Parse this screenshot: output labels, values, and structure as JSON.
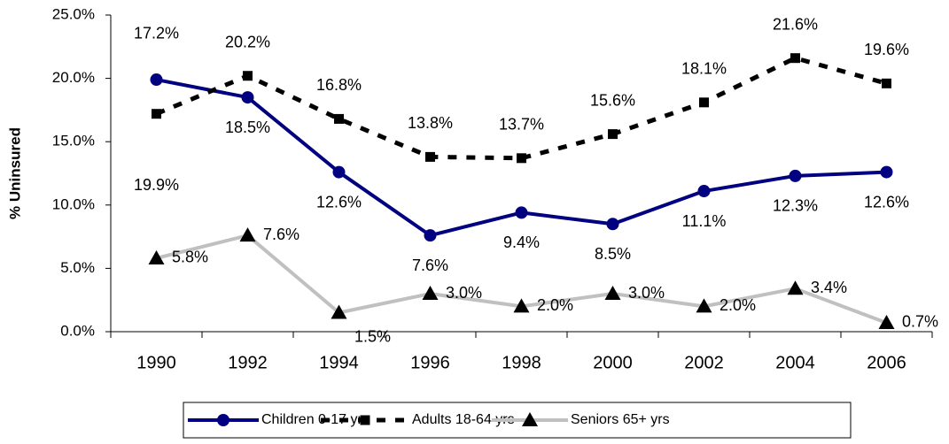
{
  "chart_data": {
    "type": "line",
    "y_label": "% Uninsured",
    "categories": [
      "1990",
      "1992",
      "1994",
      "1996",
      "1998",
      "2000",
      "2002",
      "2004",
      "2006"
    ],
    "series": [
      {
        "name": "Children 0-17 yrs",
        "color": "#000080",
        "marker": "circle",
        "marker_color": "#000080",
        "dashed": false,
        "values": [
          19.9,
          18.5,
          12.6,
          7.6,
          9.4,
          8.5,
          11.1,
          12.3,
          12.6
        ],
        "value_labels": [
          "19.9%",
          "18.5%",
          "12.6%",
          "7.6%",
          "9.4%",
          "8.5%",
          "11.1%",
          "12.3%",
          "12.6%"
        ]
      },
      {
        "name": "Adults 18-64 yrs",
        "color": "#000000",
        "marker": "square",
        "marker_color": "#000000",
        "dashed": true,
        "values": [
          17.2,
          20.2,
          16.8,
          13.8,
          13.7,
          15.6,
          18.1,
          21.6,
          19.6
        ],
        "value_labels": [
          "17.2%",
          "20.2%",
          "16.8%",
          "13.8%",
          "13.7%",
          "15.6%",
          "18.1%",
          "21.6%",
          "19.6%"
        ]
      },
      {
        "name": "Seniors 65+ yrs",
        "color": "#c0c0c0",
        "marker": "triangle",
        "marker_color": "#000000",
        "dashed": false,
        "values": [
          5.8,
          7.6,
          1.5,
          3.0,
          2.0,
          3.0,
          2.0,
          3.4,
          0.7
        ],
        "value_labels": [
          "5.8%",
          "7.6%",
          "1.5%",
          "3.0%",
          "2.0%",
          "3.0%",
          "2.0%",
          "3.4%",
          "0.7%"
        ]
      }
    ],
    "ylim": [
      0,
      25
    ],
    "yticks": [
      {
        "value": 0,
        "label": "0.0%"
      },
      {
        "value": 5,
        "label": "5.0%"
      },
      {
        "value": 10,
        "label": "10.0%"
      },
      {
        "value": 15,
        "label": "15.0%"
      },
      {
        "value": 20,
        "label": "20.0%"
      },
      {
        "value": 25,
        "label": "25.0%"
      }
    ],
    "grid": false,
    "legend": "bottom"
  }
}
